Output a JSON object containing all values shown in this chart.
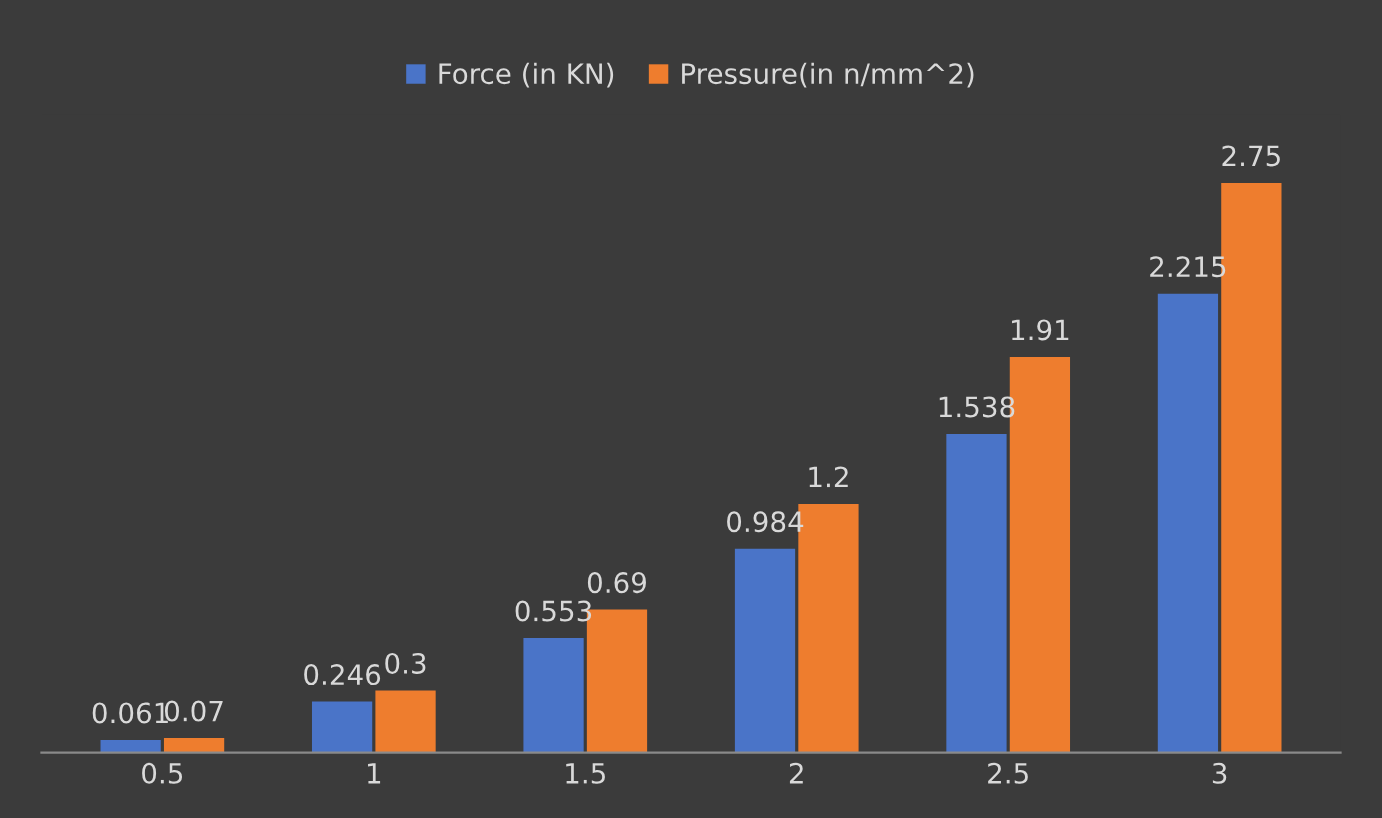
{
  "chart_data": {
    "type": "bar",
    "categories": [
      "0.5",
      "1",
      "1.5",
      "2",
      "2.5",
      "3"
    ],
    "series": [
      {
        "name": "Force (in KN)",
        "color": "#4a74c8",
        "values": [
          0.061,
          0.246,
          0.553,
          0.984,
          1.538,
          2.215
        ]
      },
      {
        "name": "Pressure(in n/mm^2)",
        "color": "#ee7d2e",
        "values": [
          0.07,
          0.3,
          0.69,
          1.2,
          1.91,
          2.75
        ]
      }
    ],
    "data_labels": true,
    "legend": "top",
    "grid": false
  }
}
